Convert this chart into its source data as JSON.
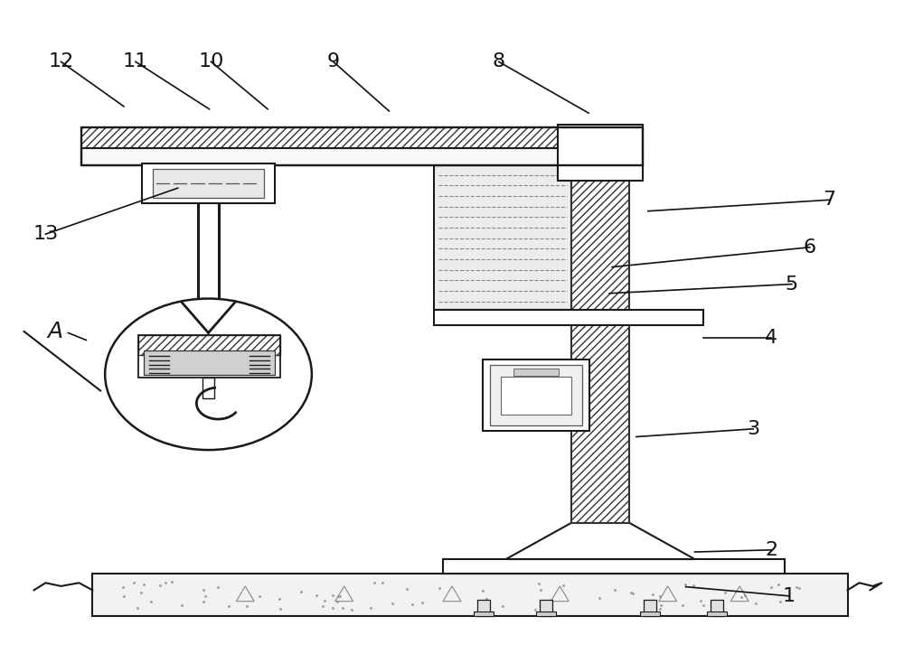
{
  "bg_color": "#ffffff",
  "line_color": "#1a1a1a",
  "label_color": "#111111",
  "label_fontsize": 16,
  "fig_width": 10.0,
  "fig_height": 7.34
}
